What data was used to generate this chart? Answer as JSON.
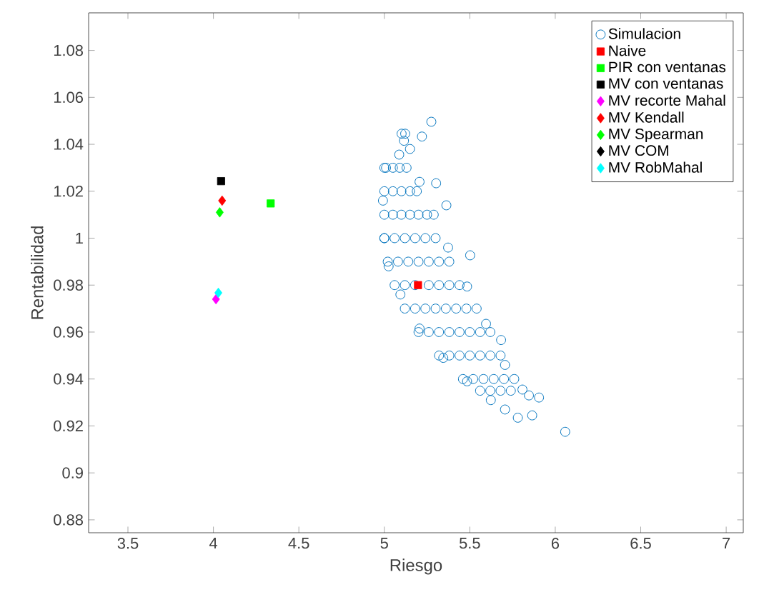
{
  "chart_data": {
    "type": "scatter",
    "xlabel": "Riesgo",
    "ylabel": "Rentabilidad",
    "xlim": [
      3.27,
      7.1
    ],
    "ylim": [
      0.8745,
      1.096
    ],
    "xticks": [
      3.5,
      4,
      4.5,
      5,
      5.5,
      6,
      6.5,
      7
    ],
    "yticks": [
      0.88,
      0.9,
      0.92,
      0.94,
      0.96,
      0.98,
      1,
      1.02,
      1.04,
      1.06,
      1.08
    ],
    "grid": false,
    "legend": "top right",
    "series": [
      {
        "name": "Simulacion",
        "color": "#0072bd",
        "marker": "circle",
        "x": [
          5.087,
          5.0,
          4.992,
          5.0,
          5.025,
          5.094,
          5.206,
          5.345,
          5.484,
          5.623,
          5.706,
          5.846,
          5.706,
          5.595,
          5.484,
          5.373,
          5.289,
          5.206,
          5.15,
          5.122,
          5.275,
          6.058,
          5.865,
          5.781,
          5.905,
          5.808,
          5.683,
          5.502,
          5.363,
          5.303,
          5.22,
          5.101,
          5.115,
          5.01,
          5.05,
          5.09,
          5.13,
          5.0,
          5.05,
          5.1,
          5.15,
          5.19,
          5.0,
          5.05,
          5.1,
          5.15,
          5.2,
          5.25,
          5.0,
          5.06,
          5.12,
          5.18,
          5.24,
          5.3,
          5.02,
          5.08,
          5.14,
          5.2,
          5.26,
          5.32,
          5.38,
          5.06,
          5.12,
          5.18,
          5.26,
          5.32,
          5.38,
          5.44,
          5.12,
          5.18,
          5.24,
          5.3,
          5.36,
          5.42,
          5.48,
          5.54,
          5.2,
          5.26,
          5.32,
          5.38,
          5.44,
          5.5,
          5.56,
          5.62,
          5.32,
          5.38,
          5.44,
          5.5,
          5.56,
          5.62,
          5.68,
          5.46,
          5.52,
          5.58,
          5.64,
          5.7,
          5.76,
          5.56,
          5.62,
          5.68,
          5.74
        ],
        "values": [
          1.0356,
          1.03,
          1.016,
          1.0,
          0.988,
          0.976,
          0.9615,
          0.949,
          0.939,
          0.931,
          0.927,
          0.933,
          0.946,
          0.9635,
          0.9794,
          0.996,
          1.01,
          1.024,
          1.038,
          1.0445,
          1.0496,
          0.9175,
          0.9245,
          0.9235,
          0.9321,
          0.9355,
          0.9566,
          0.9927,
          1.014,
          1.0234,
          1.0433,
          1.0445,
          1.0415,
          1.03,
          1.03,
          1.03,
          1.03,
          1.02,
          1.02,
          1.02,
          1.02,
          1.02,
          1.01,
          1.01,
          1.01,
          1.01,
          1.01,
          1.01,
          1.0,
          1.0,
          1.0,
          1.0,
          1.0,
          1.0,
          0.99,
          0.99,
          0.99,
          0.99,
          0.99,
          0.99,
          0.99,
          0.98,
          0.98,
          0.98,
          0.98,
          0.98,
          0.98,
          0.98,
          0.97,
          0.97,
          0.97,
          0.97,
          0.97,
          0.97,
          0.97,
          0.97,
          0.96,
          0.96,
          0.96,
          0.96,
          0.96,
          0.96,
          0.96,
          0.96,
          0.95,
          0.95,
          0.95,
          0.95,
          0.95,
          0.95,
          0.95,
          0.94,
          0.94,
          0.94,
          0.94,
          0.94,
          0.94,
          0.935,
          0.935,
          0.935,
          0.935
        ]
      },
      {
        "name": "Naive",
        "color": "#ff0000",
        "marker": "square",
        "x": [
          5.197
        ],
        "values": [
          0.98
        ]
      },
      {
        "name": "PIR con ventanas",
        "color": "#00ff00",
        "marker": "square",
        "x": [
          4.335
        ],
        "values": [
          1.0148
        ]
      },
      {
        "name": "MV con ventanas",
        "color": "#000000",
        "marker": "square",
        "x": [
          4.045
        ],
        "values": [
          1.0243
        ]
      },
      {
        "name": "MV recorte Mahal",
        "color": "#ff00ff",
        "marker": "diamond",
        "x": [
          4.015
        ],
        "values": [
          0.974
        ]
      },
      {
        "name": "MV Kendall",
        "color": "#ff0000",
        "marker": "diamond",
        "x": [
          4.051
        ],
        "values": [
          1.016
        ]
      },
      {
        "name": "MV Spearman",
        "color": "#00ff00",
        "marker": "diamond",
        "x": [
          4.037
        ],
        "values": [
          1.011
        ]
      },
      {
        "name": "MV COM",
        "color": "#000000",
        "marker": "diamond",
        "x": [
          null
        ],
        "values": [
          null
        ]
      },
      {
        "name": "MV RobMahal",
        "color": "#00ffff",
        "marker": "diamond",
        "x": [
          4.029
        ],
        "values": [
          0.9767
        ]
      }
    ]
  }
}
